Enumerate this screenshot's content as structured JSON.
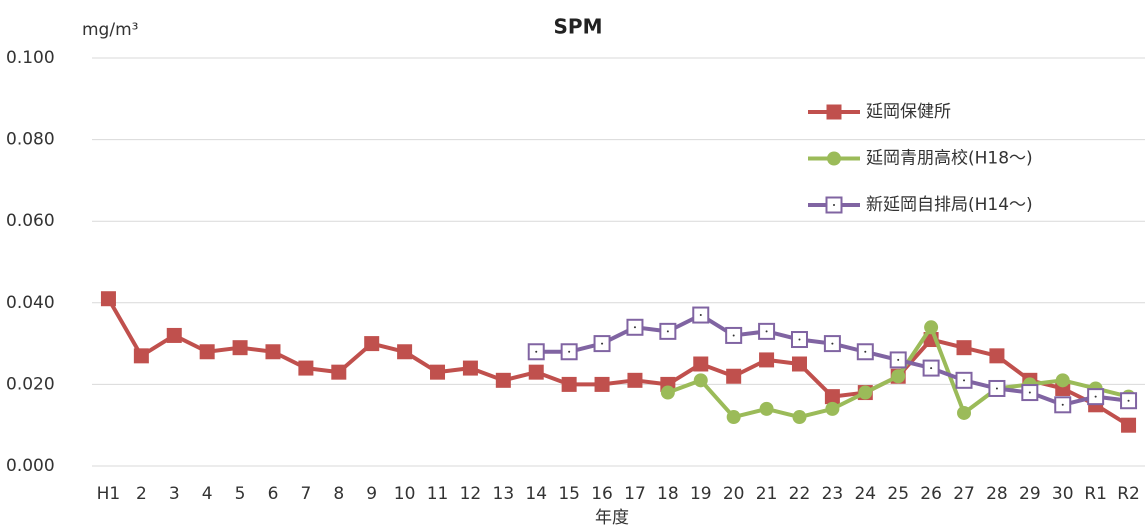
{
  "chart_data": {
    "type": "line",
    "title": "SPM",
    "y_label": "mg/m³",
    "x_label": "年度",
    "categories": [
      "H1",
      "2",
      "3",
      "4",
      "5",
      "6",
      "7",
      "8",
      "9",
      "10",
      "11",
      "12",
      "13",
      "14",
      "15",
      "16",
      "17",
      "18",
      "19",
      "20",
      "21",
      "22",
      "23",
      "24",
      "25",
      "26",
      "27",
      "28",
      "29",
      "30",
      "R1",
      "R2"
    ],
    "series": [
      {
        "name": "延岡保健所",
        "color": "#c0504d",
        "marker": "square",
        "values": [
          0.041,
          0.027,
          0.032,
          0.028,
          0.029,
          0.028,
          0.024,
          0.023,
          0.03,
          0.028,
          0.023,
          0.024,
          0.021,
          0.023,
          0.02,
          0.02,
          0.021,
          0.02,
          0.025,
          0.022,
          0.026,
          0.025,
          0.017,
          0.018,
          0.022,
          0.031,
          0.029,
          0.027,
          0.021,
          0.019,
          0.015,
          0.01
        ]
      },
      {
        "name": "延岡青朋高校(H18～)",
        "color": "#9bbb59",
        "marker": "circle",
        "values": [
          null,
          null,
          null,
          null,
          null,
          null,
          null,
          null,
          null,
          null,
          null,
          null,
          null,
          null,
          null,
          null,
          null,
          0.018,
          0.021,
          0.012,
          0.014,
          0.012,
          0.014,
          0.018,
          0.022,
          0.034,
          0.013,
          0.019,
          0.02,
          0.021,
          0.019,
          0.017
        ]
      },
      {
        "name": "新延岡自排局(H14～)",
        "color": "#8064a2",
        "marker": "hollow-square",
        "values": [
          null,
          null,
          null,
          null,
          null,
          null,
          null,
          null,
          null,
          null,
          null,
          null,
          null,
          0.028,
          0.028,
          0.03,
          0.034,
          0.033,
          0.037,
          0.032,
          0.033,
          0.031,
          0.03,
          0.028,
          0.026,
          0.024,
          0.021,
          0.019,
          0.018,
          0.015,
          0.017,
          0.016
        ]
      }
    ],
    "ylim": [
      0,
      0.1
    ],
    "yticks": [
      {
        "value": 0,
        "label": "0.000"
      },
      {
        "value": 0.02,
        "label": "0.020"
      },
      {
        "value": 0.04,
        "label": "0.040"
      },
      {
        "value": 0.06,
        "label": "0.060"
      },
      {
        "value": 0.08,
        "label": "0.080"
      },
      {
        "value": 0.1,
        "label": "0.100"
      }
    ],
    "grid": true,
    "legend": "upper right"
  }
}
